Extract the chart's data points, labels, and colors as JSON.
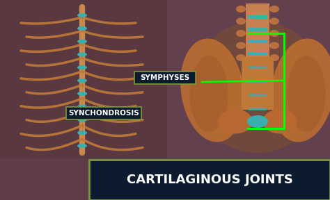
{
  "title": "CARTILAGINOUS JOINTS",
  "title_box_color": "#0d1b2e",
  "title_text_color": "#ffffff",
  "title_box_border_color": "#7a9a3a",
  "bg_color": "#6b4a52",
  "bg_left_color": "#5a3a42",
  "bg_right_color": "#6a4a5a",
  "label_symphyses": "SYMPHYSES",
  "label_synchondrosis": "SYNCHONDROSIS",
  "label_box_color": "#0d1b2e",
  "label_text_color": "#ffffff",
  "label_border_color": "#7a9a3a",
  "green_line_color": "#00ff00",
  "black_line_color": "#111111",
  "annotation_fontsize": 7.5,
  "title_fontsize": 13,
  "spine_color": "#c8884e",
  "rib_color": "#c07a3a",
  "cartilage_color": "#3aafaf",
  "bone_color": "#c07840"
}
